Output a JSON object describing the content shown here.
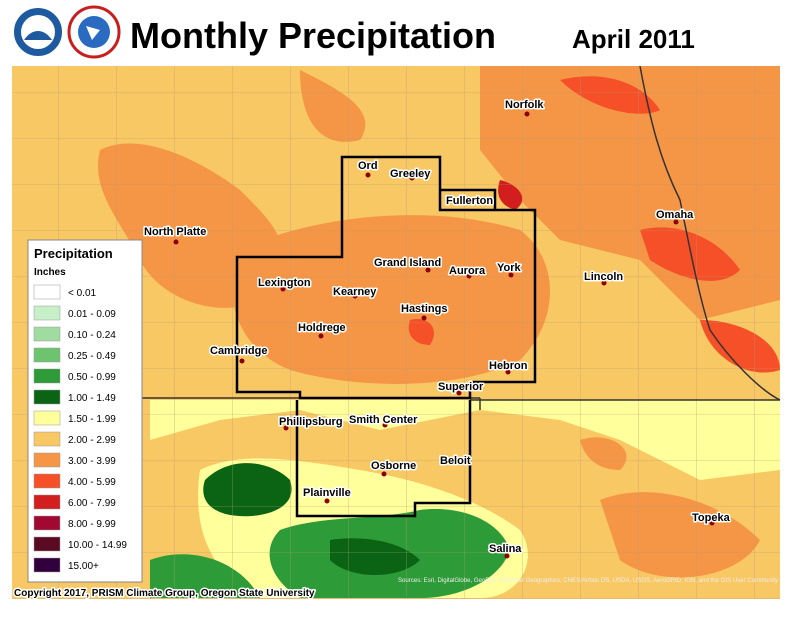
{
  "header": {
    "title": "Monthly Precipitation",
    "date": "April 2011"
  },
  "legend": {
    "title": "Precipitation",
    "units": "Inches",
    "items": [
      {
        "label": "< 0.01",
        "color": "#ffffff"
      },
      {
        "label": "0.01 - 0.09",
        "color": "#c8f0c8"
      },
      {
        "label": "0.10 - 0.24",
        "color": "#a0dca0"
      },
      {
        "label": "0.25 - 0.49",
        "color": "#6ec36e"
      },
      {
        "label": "0.50 - 0.99",
        "color": "#2d9b37"
      },
      {
        "label": "1.00 - 1.49",
        "color": "#0a6414"
      },
      {
        "label": "1.50 - 1.99",
        "color": "#ffff9b"
      },
      {
        "label": "2.00 - 2.99",
        "color": "#f8c864"
      },
      {
        "label": "3.00 - 3.99",
        "color": "#f59646"
      },
      {
        "label": "4.00 - 5.99",
        "color": "#f55028"
      },
      {
        "label": "6.00 - 7.99",
        "color": "#d21e1e"
      },
      {
        "label": "8.00 - 9.99",
        "color": "#a00a32"
      },
      {
        "label": "10.00 - 14.99",
        "color": "#5a0a23"
      },
      {
        "label": "15.00+",
        "color": "#32003c"
      }
    ]
  },
  "cities": [
    "Norfolk",
    "Ord",
    "Greeley",
    "Fullerton",
    "North Platte",
    "Omaha",
    "Grand Island",
    "Aurora",
    "York",
    "Lexington",
    "Lincoln",
    "Kearney",
    "Hastings",
    "Holdrege",
    "Cambridge",
    "Hebron",
    "Superior",
    "Phillipsburg",
    "Smith Center",
    "Beloit",
    "Osborne",
    "Plainville",
    "Topeka",
    "Salina"
  ],
  "footer": {
    "copyright": "Copyright 2017, PRISM Climate Group, Oregon State University",
    "attribution": "Sources: Esri, DigitalGlobe, GeoEye, Earthstar Geographics, CNES/Airbus DS, USDA, USGS, AeroGRID, IGN, and the GIS User Community"
  }
}
